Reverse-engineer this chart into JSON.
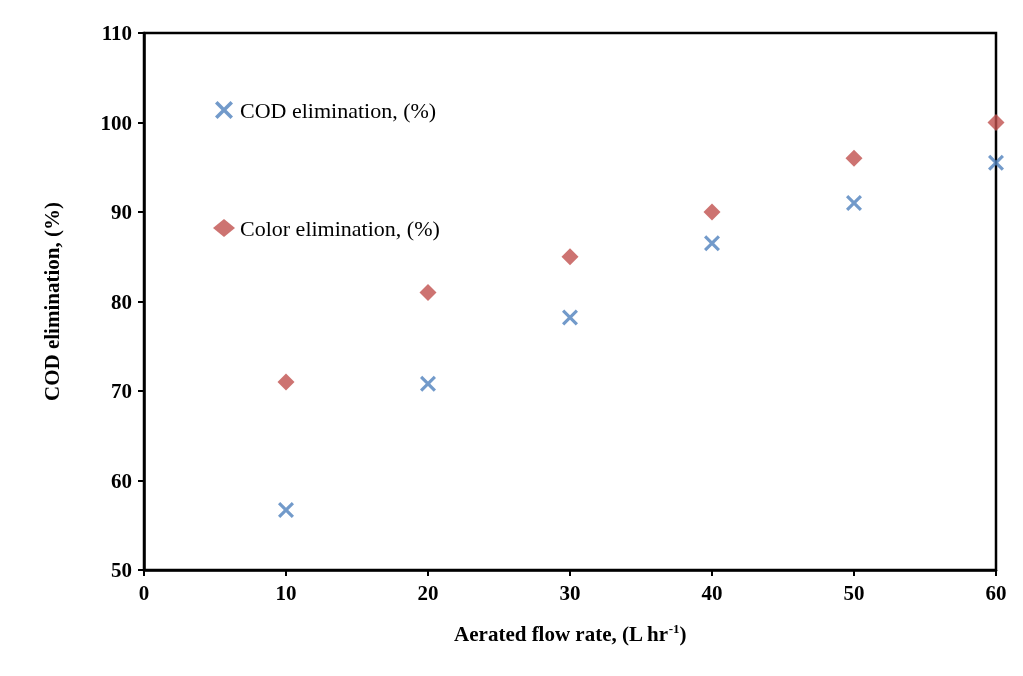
{
  "chart_data": {
    "type": "scatter",
    "xlabel": "Aerated flow rate, (L hr$^{-1}$)",
    "ylabel": "COD elimination, (%)",
    "x": [
      10,
      20,
      30,
      40,
      50,
      60
    ],
    "series": [
      {
        "name": "COD elimination, (%)",
        "color": "#4f81bd",
        "marker": "cross",
        "values": [
          56.7,
          70.8,
          78.2,
          86.5,
          91.0,
          95.5
        ]
      },
      {
        "name": "Color elimination, (%)",
        "color": "#c0504d",
        "marker": "diamond",
        "values": [
          71,
          81,
          85,
          90,
          96,
          100
        ]
      }
    ],
    "xlim": [
      0,
      60
    ],
    "xticks": [
      0,
      10,
      20,
      30,
      40,
      50,
      60
    ],
    "ylim": [
      50,
      110
    ],
    "yticks": [
      50,
      60,
      70,
      80,
      90,
      100,
      110
    ],
    "grid": false,
    "legend": "top left"
  }
}
